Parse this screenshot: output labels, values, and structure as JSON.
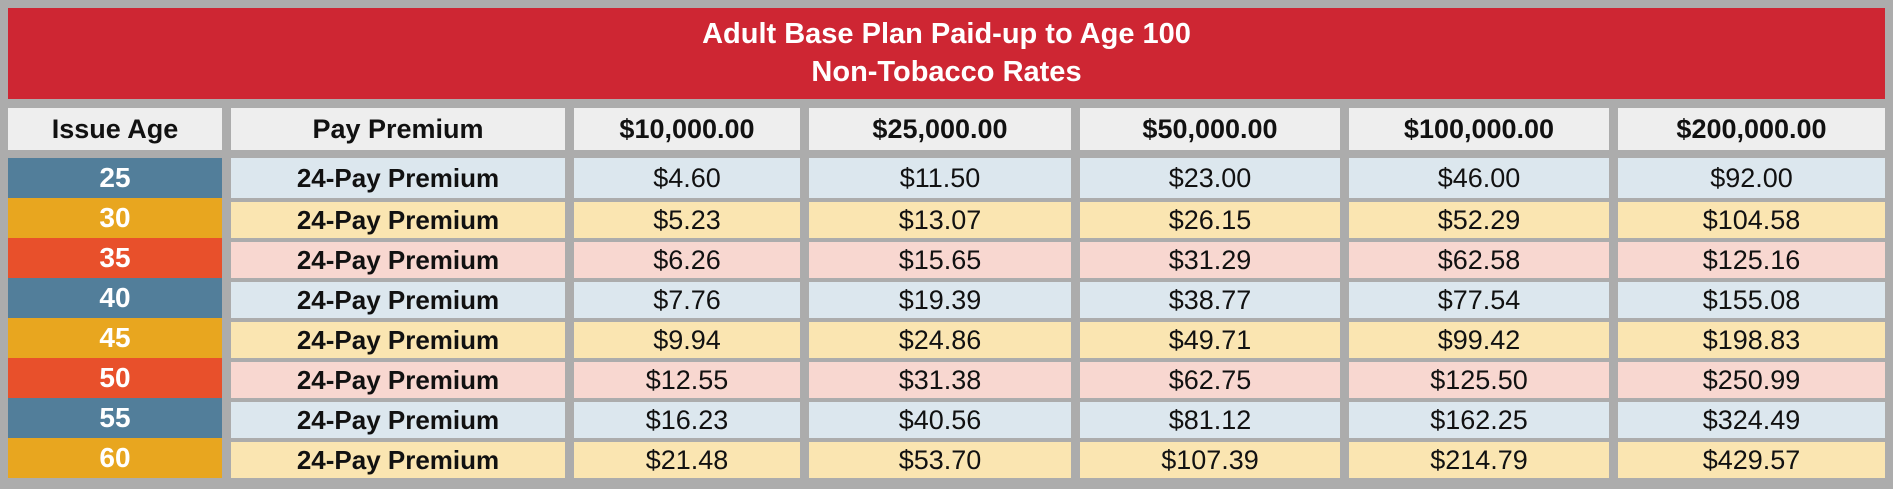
{
  "title": {
    "line1": "Adult Base Plan Paid-up to Age 100",
    "line2": "Non-Tobacco Rates"
  },
  "chart_data": {
    "type": "table",
    "title": "Adult Base Plan Paid-up to Age 100 — Non-Tobacco Rates",
    "columns": [
      "Issue Age",
      "Pay Premium",
      "$10,000.00",
      "$25,000.00",
      "$50,000.00",
      "$100,000.00",
      "$200,000.00"
    ],
    "rows": [
      {
        "age": "25",
        "pay": "24-Pay Premium",
        "values": [
          "$4.60",
          "$11.50",
          "$23.00",
          "$46.00",
          "$92.00"
        ]
      },
      {
        "age": "30",
        "pay": "24-Pay Premium",
        "values": [
          "$5.23",
          "$13.07",
          "$26.15",
          "$52.29",
          "$104.58"
        ]
      },
      {
        "age": "35",
        "pay": "24-Pay Premium",
        "values": [
          "$6.26",
          "$15.65",
          "$31.29",
          "$62.58",
          "$125.16"
        ]
      },
      {
        "age": "40",
        "pay": "24-Pay Premium",
        "values": [
          "$7.76",
          "$19.39",
          "$38.77",
          "$77.54",
          "$155.08"
        ]
      },
      {
        "age": "45",
        "pay": "24-Pay Premium",
        "values": [
          "$9.94",
          "$24.86",
          "$49.71",
          "$99.42",
          "$198.83"
        ]
      },
      {
        "age": "50",
        "pay": "24-Pay Premium",
        "values": [
          "$12.55",
          "$31.38",
          "$62.75",
          "$125.50",
          "$250.99"
        ]
      },
      {
        "age": "55",
        "pay": "24-Pay Premium",
        "values": [
          "$16.23",
          "$40.56",
          "$81.12",
          "$162.25",
          "$324.49"
        ]
      },
      {
        "age": "60",
        "pay": "24-Pay Premium",
        "values": [
          "$21.48",
          "$53.70",
          "$107.39",
          "$214.79",
          "$429.57"
        ]
      }
    ]
  },
  "colors": {
    "title_band": "#CE2633",
    "grid_gray": "#ACACAC",
    "header_cell": "#EEEEEE",
    "age_blue": "#527E9A",
    "age_gold": "#E8A61F",
    "age_red_orange": "#E8502B",
    "row_light_blue": "#DCE7EE",
    "row_light_yellow": "#FAE5B1",
    "row_light_pink": "#F8D7D0",
    "title_text": "#FFFFFF",
    "body_text": "#111111"
  }
}
